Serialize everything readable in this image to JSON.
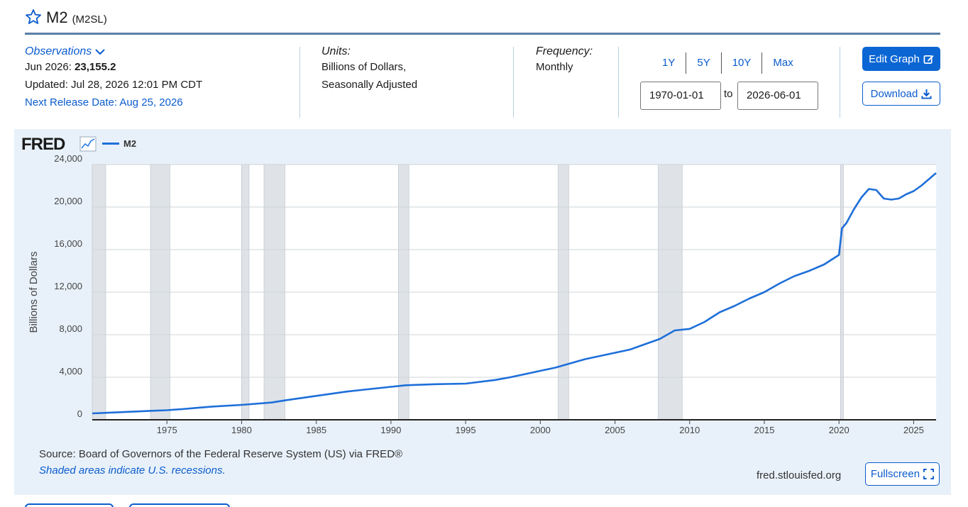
{
  "header": {
    "series_name": "M2",
    "series_code": "(M2SL)"
  },
  "observations": {
    "label": "Observations",
    "date_label": "Jun 2026:",
    "value": "23,155.2",
    "updated": "Updated: Jul 28, 2026 12:01 PM CDT",
    "next_release": "Next Release Date: Aug 25, 2026"
  },
  "units": {
    "label": "Units:",
    "line1": "Billions of Dollars,",
    "line2": "Seasonally Adjusted"
  },
  "frequency": {
    "label": "Frequency:",
    "value": "Monthly"
  },
  "range_buttons": [
    "1Y",
    "5Y",
    "10Y",
    "Max"
  ],
  "date_range": {
    "start": "1970-01-01",
    "to": "to",
    "end": "2026-06-01"
  },
  "buttons": {
    "edit": "Edit Graph",
    "download": "Download",
    "fullscreen": "Fullscreen"
  },
  "footer": {
    "source": "Source: Board of Governors of the Federal Reserve System (US) via FRED®",
    "recession_note": "Shaded areas indicate U.S. recessions.",
    "site": "fred.stlouisfed.org"
  },
  "logo": "FRED",
  "colors": {
    "line": "#1e6fd9",
    "accent": "#0b66d4",
    "recession": "#dfe3e8",
    "panel": "#e8f1fa"
  },
  "chart_data": {
    "type": "line",
    "ylabel": "Billions of Dollars",
    "ylim": [
      0,
      24000
    ],
    "xlim": [
      1970.0,
      2026.5
    ],
    "y_ticks": [
      "0",
      "4,000",
      "8,000",
      "12,000",
      "16,000",
      "20,000",
      "24,000"
    ],
    "y_tick_values": [
      0,
      4000,
      8000,
      12000,
      16000,
      20000,
      24000
    ],
    "x_ticks": [
      "1975",
      "1980",
      "1985",
      "1990",
      "1995",
      "2000",
      "2005",
      "2010",
      "2015",
      "2020",
      "2025"
    ],
    "x_tick_values": [
      1975,
      1980,
      1985,
      1990,
      1995,
      2000,
      2005,
      2010,
      2015,
      2020,
      2025
    ],
    "grid": true,
    "recessions": [
      [
        1970.0,
        1970.9
      ],
      [
        1973.9,
        1975.2
      ],
      [
        1980.0,
        1980.5
      ],
      [
        1981.5,
        1982.9
      ],
      [
        1990.5,
        1991.2
      ],
      [
        2001.2,
        2001.9
      ],
      [
        2007.9,
        2009.5
      ],
      [
        2020.1,
        2020.3
      ]
    ],
    "series": [
      {
        "name": "M2",
        "x": [
          1970,
          1972,
          1974,
          1975,
          1976,
          1977,
          1978,
          1980,
          1982,
          1983,
          1985,
          1987,
          1988,
          1990,
          1991,
          1993,
          1995,
          1997,
          1998,
          2000,
          2001,
          2002,
          2003,
          2004,
          2005,
          2006,
          2007,
          2008,
          2009,
          2010,
          2011,
          2012,
          2013,
          2014,
          2015,
          2016,
          2017,
          2018,
          2019,
          2020.0,
          2020.2,
          2020.5,
          2021.0,
          2021.5,
          2022.0,
          2022.5,
          2023.0,
          2023.5,
          2024.0,
          2024.5,
          2025.0,
          2025.5,
          2026.0,
          2026.5
        ],
        "values": [
          600,
          720,
          850,
          900,
          1000,
          1120,
          1240,
          1400,
          1620,
          1850,
          2250,
          2650,
          2800,
          3100,
          3250,
          3350,
          3400,
          3750,
          4000,
          4600,
          4900,
          5300,
          5700,
          6000,
          6300,
          6600,
          7100,
          7600,
          8400,
          8550,
          9200,
          10100,
          10700,
          11400,
          12000,
          12800,
          13500,
          14000,
          14600,
          15500,
          18000,
          18500,
          19800,
          20900,
          21700,
          21600,
          20800,
          20700,
          20800,
          21200,
          21500,
          22000,
          22600,
          23200
        ]
      }
    ]
  }
}
